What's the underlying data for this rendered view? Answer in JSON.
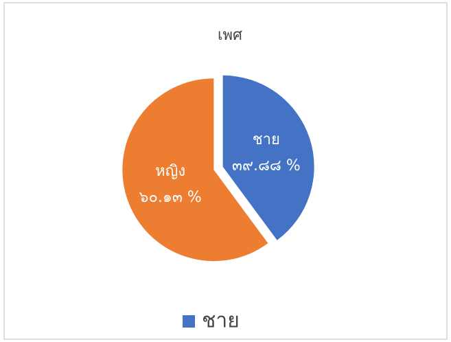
{
  "chart_data": {
    "type": "pie",
    "title": "เพศ",
    "categories": [
      "ชาย",
      "หญิง"
    ],
    "values": [
      39.88,
      60.13
    ],
    "value_labels": [
      "๓๙.๘๘ %",
      "๖๐.๑๓ %"
    ],
    "colors": [
      "#4472c4",
      "#ed7d31"
    ],
    "legend": "bottom"
  }
}
